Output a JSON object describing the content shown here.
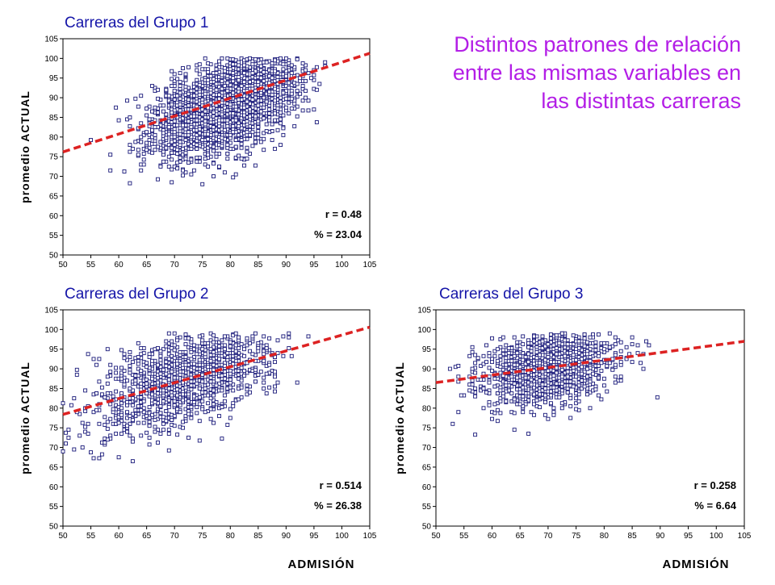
{
  "headline": "Distintos patrones de relación entre las mismas variables en las distintas carreras",
  "colors": {
    "point": "#1a1a7a",
    "regression": "#dd2222",
    "title": "#1515a8",
    "headline": "#b31ee6"
  },
  "chart_data": [
    {
      "type": "scatter",
      "title": "Carreras del Grupo 1",
      "xlabel": "",
      "ylabel": "promedio ACTUAL",
      "xlim": [
        50,
        105
      ],
      "ylim": [
        50,
        105
      ],
      "xticks": [
        "50",
        "55",
        "60",
        "65",
        "70",
        "75",
        "80",
        "85",
        "90",
        "95",
        "100",
        "105"
      ],
      "yticks": [
        "50",
        "55",
        "60",
        "65",
        "70",
        "75",
        "80",
        "85",
        "90",
        "95",
        "100",
        "105"
      ],
      "annotations": [
        "r = 0.48",
        "% = 23.04"
      ],
      "regression_line": {
        "x": [
          50,
          105
        ],
        "y": [
          76.2,
          101.3
        ],
        "style": "dashed"
      },
      "cloud": {
        "count": 2600,
        "x_mean": 79,
        "x_sd": 6.5,
        "y_mean": 88,
        "y_sd": 6.5,
        "r": 0.48,
        "x_range": [
          50,
          97
        ],
        "y_range": [
          67,
          100
        ]
      }
    },
    {
      "type": "scatter",
      "title": "Carreras del Grupo 2",
      "xlabel": "",
      "ylabel": "promedio ACTUAL",
      "xlim": [
        50,
        105
      ],
      "ylim": [
        50,
        105
      ],
      "xticks": [
        "50",
        "55",
        "60",
        "65",
        "70",
        "75",
        "80",
        "85",
        "90",
        "95",
        "100",
        "105"
      ],
      "yticks": [
        "50",
        "55",
        "60",
        "65",
        "70",
        "75",
        "80",
        "85",
        "90",
        "95",
        "100",
        "105"
      ],
      "annotations": [
        "r = 0.514",
        "% = 26.38"
      ],
      "regression_line": {
        "x": [
          50,
          105
        ],
        "y": [
          78.4,
          100.6
        ],
        "style": "dashed"
      },
      "cloud": {
        "count": 1300,
        "x_mean": 72,
        "x_sd": 8,
        "y_mean": 87.5,
        "y_sd": 7,
        "r": 0.514,
        "x_range": [
          50,
          95
        ],
        "y_range": [
          60,
          99
        ]
      }
    },
    {
      "type": "scatter",
      "title": "Carreras del Grupo 3",
      "xlabel": "ADMISIÓN",
      "ylabel": "promedio ACTUAL",
      "xlim": [
        50,
        105
      ],
      "ylim": [
        50,
        105
      ],
      "xticks": [
        "50",
        "55",
        "60",
        "65",
        "70",
        "75",
        "80",
        "85",
        "90",
        "95",
        "100",
        "105"
      ],
      "yticks": [
        "50",
        "55",
        "60",
        "65",
        "70",
        "75",
        "80",
        "85",
        "90",
        "95",
        "100",
        "105"
      ],
      "annotations": [
        "r = 0.258",
        "% = 6.64"
      ],
      "regression_line": {
        "x": [
          50,
          105
        ],
        "y": [
          86.5,
          97.0
        ],
        "style": "dashed"
      },
      "cloud": {
        "count": 1300,
        "x_mean": 70,
        "x_sd": 6,
        "y_mean": 90,
        "y_sd": 5,
        "r": 0.258,
        "x_range": [
          52,
          92
        ],
        "y_range": [
          68,
          99
        ]
      }
    }
  ],
  "extra_labels": {
    "xlabel_group2": "ADMISIÓN"
  }
}
